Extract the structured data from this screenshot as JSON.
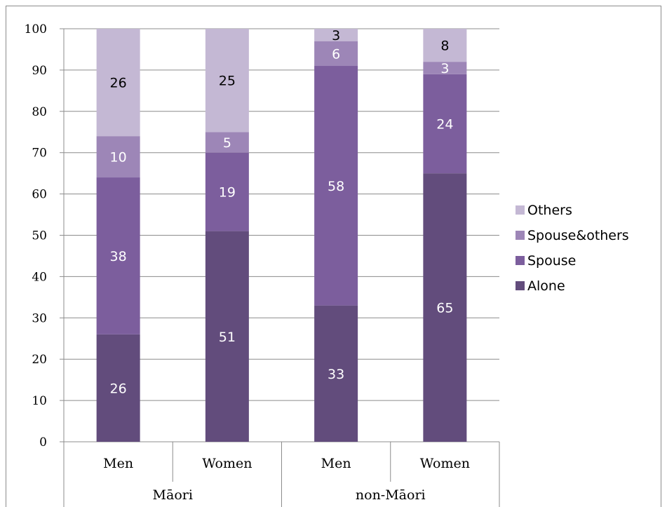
{
  "chart_data": {
    "type": "bar",
    "stacked": true,
    "groups": [
      {
        "label": "Māori",
        "categories": [
          "Men",
          "Women"
        ]
      },
      {
        "label": "non-Māori",
        "categories": [
          "Men",
          "Women"
        ]
      }
    ],
    "categories": [
      "Men",
      "Women",
      "Men",
      "Women"
    ],
    "series": [
      {
        "name": "Alone",
        "values": [
          26,
          51,
          33,
          65
        ],
        "color": "#624c7c"
      },
      {
        "name": "Spouse",
        "values": [
          38,
          19,
          58,
          24
        ],
        "color": "#7c5e9d"
      },
      {
        "name": "Spouse&others",
        "values": [
          10,
          5,
          6,
          3
        ],
        "color": "#9d86b7"
      },
      {
        "name": "Others",
        "values": [
          26,
          25,
          3,
          8
        ],
        "color": "#c4b8d4"
      }
    ],
    "label_colors": {
      "Alone": "#ffffff",
      "Spouse": "#ffffff",
      "Spouse&others": "#ffffff",
      "Others": "#000000"
    },
    "legend_order": [
      "Others",
      "Spouse&others",
      "Spouse",
      "Alone"
    ],
    "legend_position": "right",
    "ylim": [
      0,
      100
    ],
    "yticks": [
      0,
      10,
      20,
      30,
      40,
      50,
      60,
      70,
      80,
      90,
      100
    ],
    "grid": true,
    "title": "",
    "xlabel": "",
    "ylabel": ""
  }
}
